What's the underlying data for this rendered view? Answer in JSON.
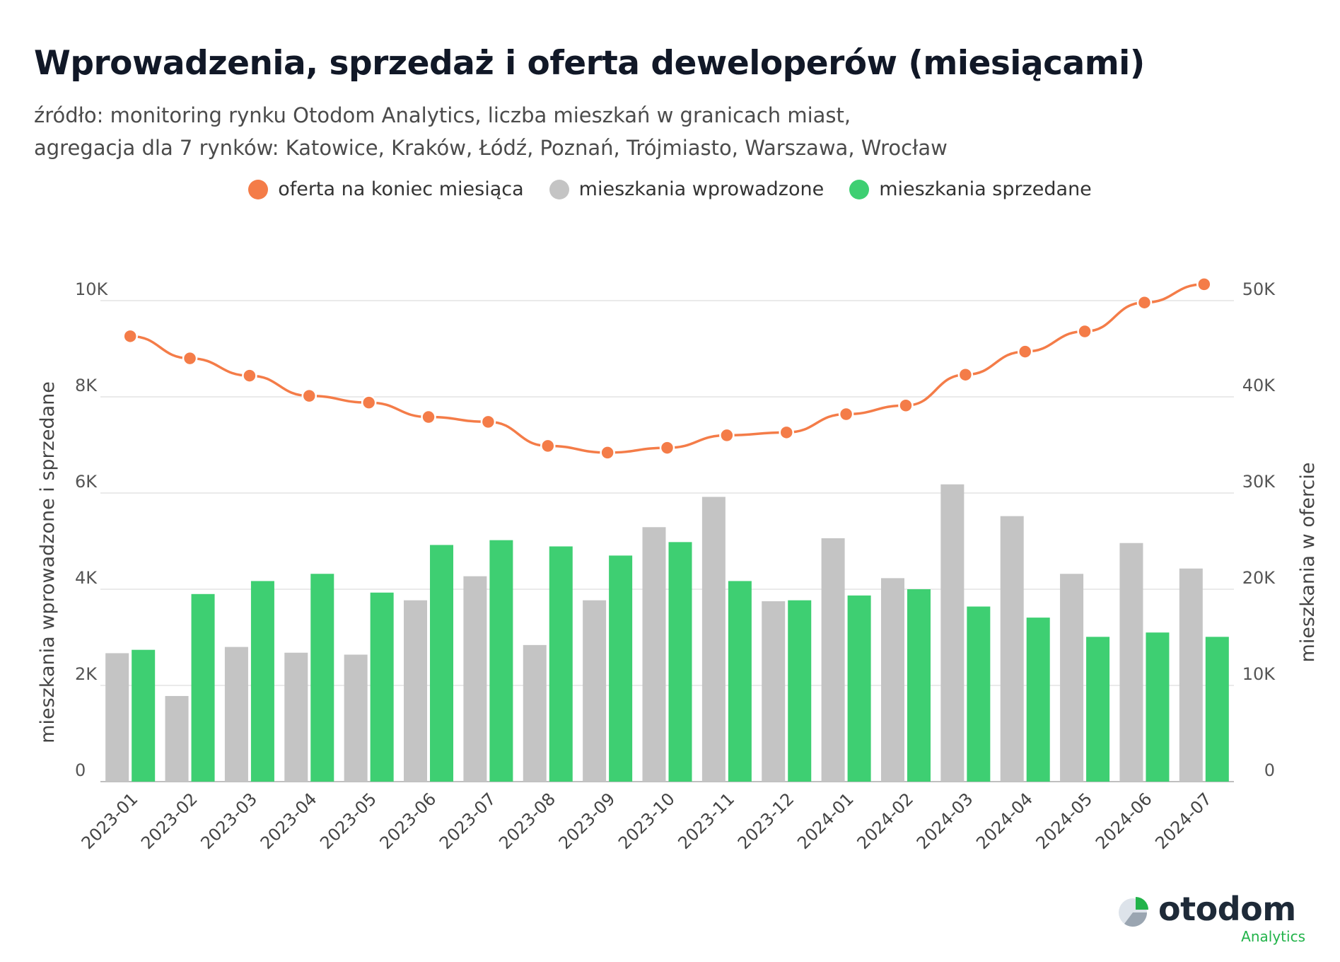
{
  "header": {
    "title": "Wprowadzenia, sprzedaż i oferta deweloperów (miesiącami)",
    "subtitle_line1": "źródło: monitoring rynku Otodom Analytics, liczba mieszkań w granicach miast,",
    "subtitle_line2": "agregacja dla 7 rynków: Katowice, Kraków, Łódź, Poznań, Trójmiasto, Warszawa, Wrocław"
  },
  "legend": [
    {
      "label": "oferta na koniec miesiąca",
      "color": "#f47c48"
    },
    {
      "label": "mieszkania wprowadzone",
      "color": "#c4c4c4"
    },
    {
      "label": "mieszkania sprzedane",
      "color": "#3ecf72"
    }
  ],
  "logo": {
    "word": "otodom",
    "sub": "Analytics"
  },
  "chart_data": {
    "type": "bar",
    "categories": [
      "2023-01",
      "2023-02",
      "2023-03",
      "2023-04",
      "2023-05",
      "2023-06",
      "2023-07",
      "2023-08",
      "2023-09",
      "2023-10",
      "2023-11",
      "2023-12",
      "2024-01",
      "2024-02",
      "2024-03",
      "2024-04",
      "2024-05",
      "2024-06",
      "2024-07"
    ],
    "series": [
      {
        "name": "mieszkania wprowadzone",
        "type": "bar",
        "axis": "left",
        "color": "#c4c4c4",
        "values": [
          2670,
          1780,
          2800,
          2680,
          2640,
          3770,
          4270,
          2840,
          3770,
          5290,
          5920,
          3750,
          5060,
          4230,
          6180,
          5520,
          4320,
          4960,
          4430
        ]
      },
      {
        "name": "mieszkania sprzedane",
        "type": "bar",
        "axis": "left",
        "color": "#3ecf72",
        "values": [
          2740,
          3900,
          4170,
          4320,
          3930,
          4920,
          5020,
          4890,
          4700,
          4980,
          4170,
          3770,
          3870,
          4000,
          3640,
          3410,
          3010,
          3100,
          3010
        ]
      },
      {
        "name": "oferta na koniec miesiąca",
        "type": "line",
        "axis": "right",
        "color": "#f47c48",
        "values": [
          46300,
          44000,
          42200,
          40100,
          39400,
          37900,
          37400,
          34900,
          34200,
          34700,
          36000,
          36300,
          38200,
          39100,
          42300,
          44700,
          46800,
          49800,
          51700
        ]
      }
    ],
    "y_left": {
      "label": "mieszkania wprowadzone i sprzedane",
      "ticks": [
        "0",
        "2K",
        "4K",
        "6K",
        "8K",
        "10K"
      ],
      "range": [
        0,
        10000
      ]
    },
    "y_right": {
      "label": "mieszkania w ofercie",
      "ticks": [
        "0",
        "10K",
        "20K",
        "30K",
        "40K",
        "50K"
      ],
      "range": [
        0,
        50000
      ]
    },
    "grid": true,
    "legend_position": "top-center"
  }
}
